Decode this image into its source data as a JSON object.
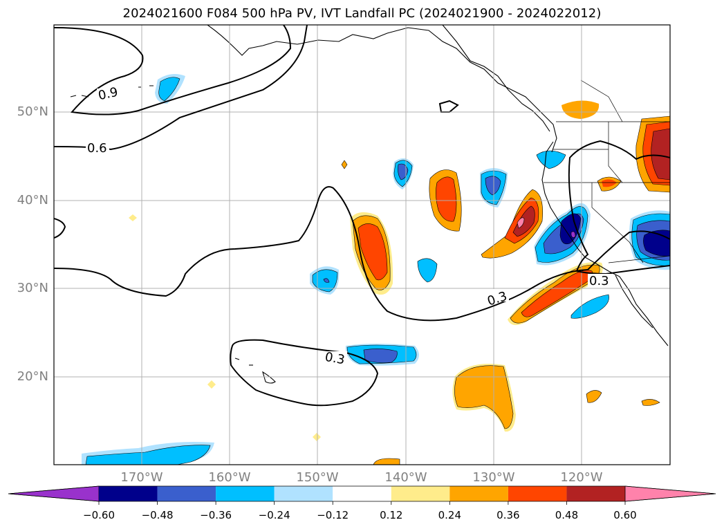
{
  "title": "2024021600 F084 500 hPa PV, IVT Landfall PC (2024021900 - 2024022012)",
  "map": {
    "lat_labels": [
      "50°N",
      "40°N",
      "30°N",
      "20°N"
    ],
    "lon_labels": [
      "170°W",
      "160°W",
      "150°W",
      "140°W",
      "130°W",
      "120°W"
    ],
    "contour_labels": [
      "0.9",
      "0.6",
      "0.3",
      "0.3",
      "0.3"
    ]
  },
  "colorbar": {
    "ticks": [
      "−0.60",
      "−0.48",
      "−0.36",
      "−0.24",
      "−0.12",
      "0.12",
      "0.24",
      "0.36",
      "0.48",
      "0.60"
    ],
    "colors": [
      "#9932cc",
      "#00008b",
      "#3a5fcd",
      "#00bfff",
      "#b0e2ff",
      "#ffffff",
      "#ffec8b",
      "#ffa500",
      "#ff4500",
      "#b22222",
      "#ff82ab"
    ],
    "extend": "both"
  },
  "chart_data": {
    "type": "heatmap",
    "title": "2024021600 F084 500 hPa PV, IVT Landfall PC (2024021900 - 2024022012)",
    "x_axis": "longitude",
    "y_axis": "latitude",
    "xlim": [
      -180,
      -110
    ],
    "ylim": [
      10,
      60
    ],
    "xticks": [
      "170°W",
      "160°W",
      "150°W",
      "140°W",
      "130°W",
      "120°W"
    ],
    "yticks": [
      "50°N",
      "40°N",
      "30°N",
      "20°N"
    ],
    "grid": true,
    "colorbar_levels": [
      -0.6,
      -0.48,
      -0.36,
      -0.24,
      -0.12,
      0.12,
      0.24,
      0.36,
      0.48,
      0.6
    ],
    "contour_levels_labeled": [
      0.9,
      0.6,
      0.3
    ]
  }
}
